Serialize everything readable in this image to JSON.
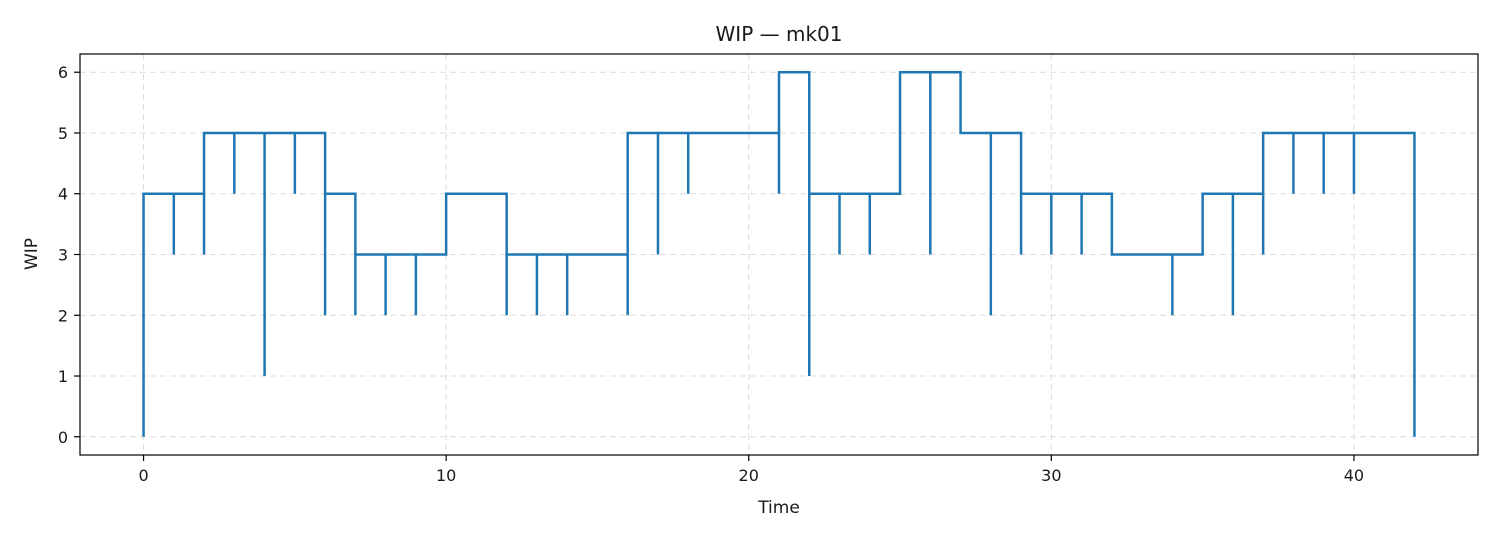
{
  "chart_data": {
    "type": "line",
    "step": "post",
    "title": "WIP — mk01",
    "xlabel": "Time",
    "ylabel": "WIP",
    "xlim": [
      -2.1,
      44.1
    ],
    "ylim": [
      -0.3,
      6.3
    ],
    "xticks": [
      0,
      10,
      20,
      30,
      40
    ],
    "yticks": [
      0,
      1,
      2,
      3,
      4,
      5,
      6
    ],
    "grid": true,
    "color": "#1f77b4",
    "series": [
      {
        "points": [
          [
            0,
            0
          ],
          [
            0,
            4
          ],
          [
            1,
            3
          ],
          [
            1,
            4
          ],
          [
            2,
            3
          ],
          [
            2,
            5
          ],
          [
            3,
            4
          ],
          [
            3,
            5
          ],
          [
            4,
            1
          ],
          [
            4,
            5
          ],
          [
            5,
            4
          ],
          [
            5,
            5
          ],
          [
            6,
            2
          ],
          [
            6,
            4
          ],
          [
            7,
            2
          ],
          [
            7,
            3
          ],
          [
            8,
            2
          ],
          [
            8,
            3
          ],
          [
            9,
            2
          ],
          [
            9,
            3
          ],
          [
            10,
            4
          ],
          [
            12,
            2
          ],
          [
            12,
            3
          ],
          [
            13,
            2
          ],
          [
            13,
            3
          ],
          [
            14,
            2
          ],
          [
            14,
            3
          ],
          [
            16,
            2
          ],
          [
            16,
            5
          ],
          [
            17,
            3
          ],
          [
            17,
            5
          ],
          [
            18,
            4
          ],
          [
            18,
            5
          ],
          [
            21,
            4
          ],
          [
            21,
            6
          ],
          [
            22,
            1
          ],
          [
            22,
            4
          ],
          [
            23,
            3
          ],
          [
            23,
            4
          ],
          [
            24,
            3
          ],
          [
            24,
            4
          ],
          [
            25,
            6
          ],
          [
            26,
            3
          ],
          [
            26,
            6
          ],
          [
            27,
            5
          ],
          [
            28,
            2
          ],
          [
            28,
            5
          ],
          [
            29,
            3
          ],
          [
            29,
            4
          ],
          [
            30,
            3
          ],
          [
            30,
            4
          ],
          [
            31,
            3
          ],
          [
            31,
            4
          ],
          [
            32,
            3
          ],
          [
            34,
            2
          ],
          [
            34,
            3
          ],
          [
            35,
            4
          ],
          [
            36,
            2
          ],
          [
            36,
            4
          ],
          [
            37,
            3
          ],
          [
            37,
            5
          ],
          [
            38,
            4
          ],
          [
            38,
            5
          ],
          [
            39,
            4
          ],
          [
            39,
            5
          ],
          [
            40,
            4
          ],
          [
            40,
            5
          ],
          [
            42,
            0
          ]
        ]
      }
    ]
  }
}
